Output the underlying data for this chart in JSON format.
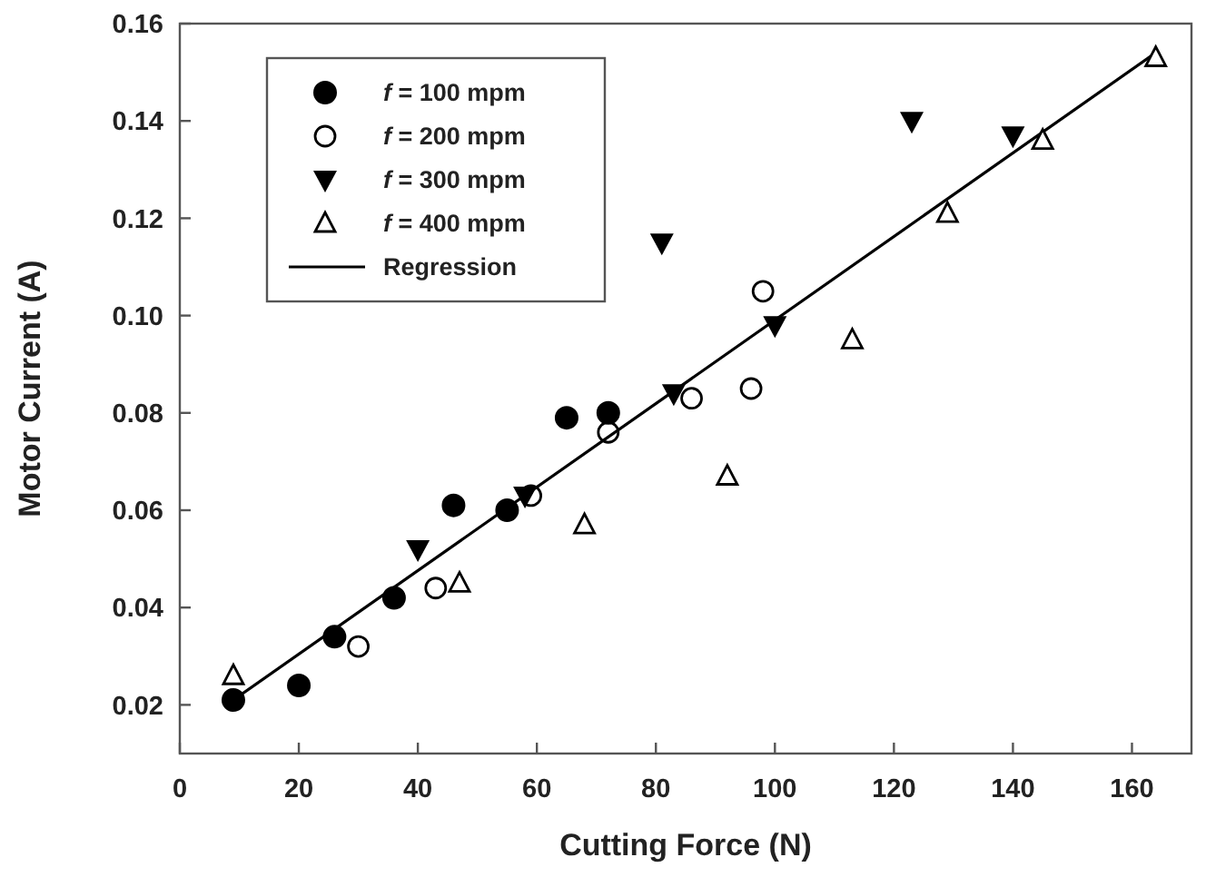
{
  "chart_data": {
    "type": "scatter",
    "xlabel": "Cutting Force (N)",
    "ylabel": "Motor Current (A)",
    "xlim": [
      0,
      170
    ],
    "xticks": [
      0,
      20,
      40,
      60,
      80,
      100,
      120,
      140,
      160
    ],
    "ylim": [
      0.01,
      0.16
    ],
    "yticks": [
      0.02,
      0.04,
      0.06,
      0.08,
      {
        "value": 0.1,
        "label": "0.10"
      },
      0.12,
      0.14,
      0.16
    ],
    "grid": false,
    "legend": "top left",
    "series": [
      {
        "name": "f = 100 mpm",
        "color": "#000000",
        "marker": "circle",
        "x": [
          9,
          20,
          26,
          36,
          46,
          55,
          65,
          72
        ],
        "values": [
          0.021,
          0.024,
          0.034,
          0.042,
          0.061,
          0.06,
          0.079,
          0.08
        ]
      },
      {
        "name": "f = 200 mpm",
        "color": "#000000",
        "marker": "circle-open",
        "x": [
          30,
          43,
          59,
          72,
          86,
          96,
          98
        ],
        "values": [
          0.032,
          0.044,
          0.063,
          0.076,
          0.083,
          0.085,
          0.105
        ]
      },
      {
        "name": "f = 300 mpm",
        "color": "#000000",
        "marker": "triangle-down",
        "x": [
          40,
          58,
          81,
          83,
          100,
          123,
          140
        ],
        "values": [
          0.052,
          0.063,
          0.115,
          0.084,
          0.098,
          0.14,
          0.137
        ]
      },
      {
        "name": "f = 400 mpm",
        "color": "#000000",
        "marker": "triangle-open",
        "x": [
          9,
          47,
          68,
          92,
          113,
          129,
          145,
          164
        ],
        "values": [
          0.026,
          0.045,
          0.057,
          0.067,
          0.095,
          0.121,
          0.136,
          0.153
        ]
      },
      {
        "name": "Regression",
        "type": "line",
        "color": "#000000",
        "marker": "none",
        "line_style": "solid",
        "x": [
          9,
          164
        ],
        "values": [
          0.021,
          0.154
        ]
      }
    ]
  }
}
